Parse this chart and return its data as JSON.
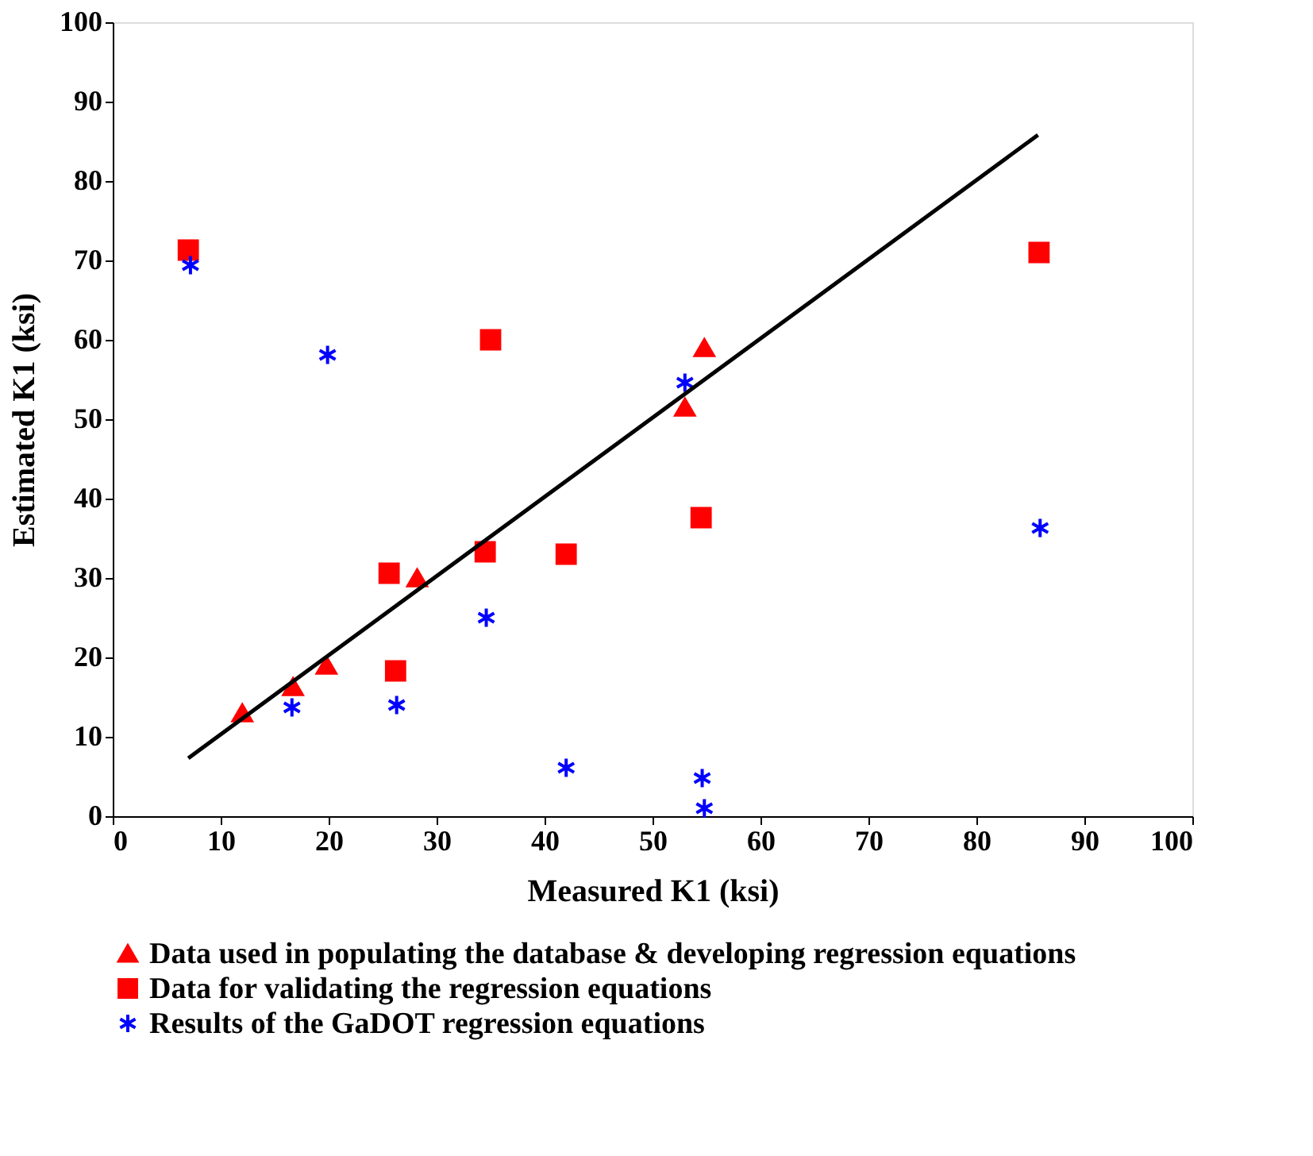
{
  "chart_data": {
    "type": "scatter",
    "xlabel": "Measured K1 (ksi)",
    "ylabel": "Estimated K1 (ksi)",
    "xlim": [
      0,
      100
    ],
    "xticks": [
      0,
      10,
      20,
      30,
      40,
      50,
      60,
      70,
      80,
      90,
      100
    ],
    "ylim": [
      0,
      100
    ],
    "yticks": [
      0,
      10,
      20,
      30,
      40,
      50,
      60,
      70,
      80,
      90,
      100
    ],
    "grid": false,
    "legend": "bottom",
    "series": [
      {
        "name": "Data used in populating the database & developing regression equations",
        "color": "#ff0000",
        "marker": "triangle",
        "x": [
          12,
          16.7,
          19.8,
          28.2,
          53,
          54.8
        ],
        "values": [
          13,
          16.3,
          19,
          30,
          51.5,
          59
        ]
      },
      {
        "name": "Data for validating the regression equations",
        "color": "#ff0000",
        "marker": "square",
        "x": [
          7,
          35,
          25.6,
          26.2,
          34.5,
          42,
          54.5,
          85.8
        ],
        "values": [
          71.3,
          60,
          30.6,
          18.3,
          33.3,
          33,
          37.6,
          71
        ]
      },
      {
        "name": "Results of the GaDOT regression equations",
        "color": "#0000ff",
        "marker": "cross",
        "x": [
          7.2,
          19.9,
          16.6,
          26.3,
          34.6,
          42,
          53,
          54.6,
          54.8,
          85.9
        ],
        "values": [
          69.4,
          58.1,
          13.7,
          14,
          25,
          6.1,
          54.6,
          4.8,
          1,
          36.3
        ]
      },
      {
        "type": "line",
        "color": "#000000",
        "marker": "none",
        "line_style": "solid",
        "x": [
          7,
          85.7
        ],
        "values": [
          7.3,
          85.8
        ]
      }
    ]
  }
}
